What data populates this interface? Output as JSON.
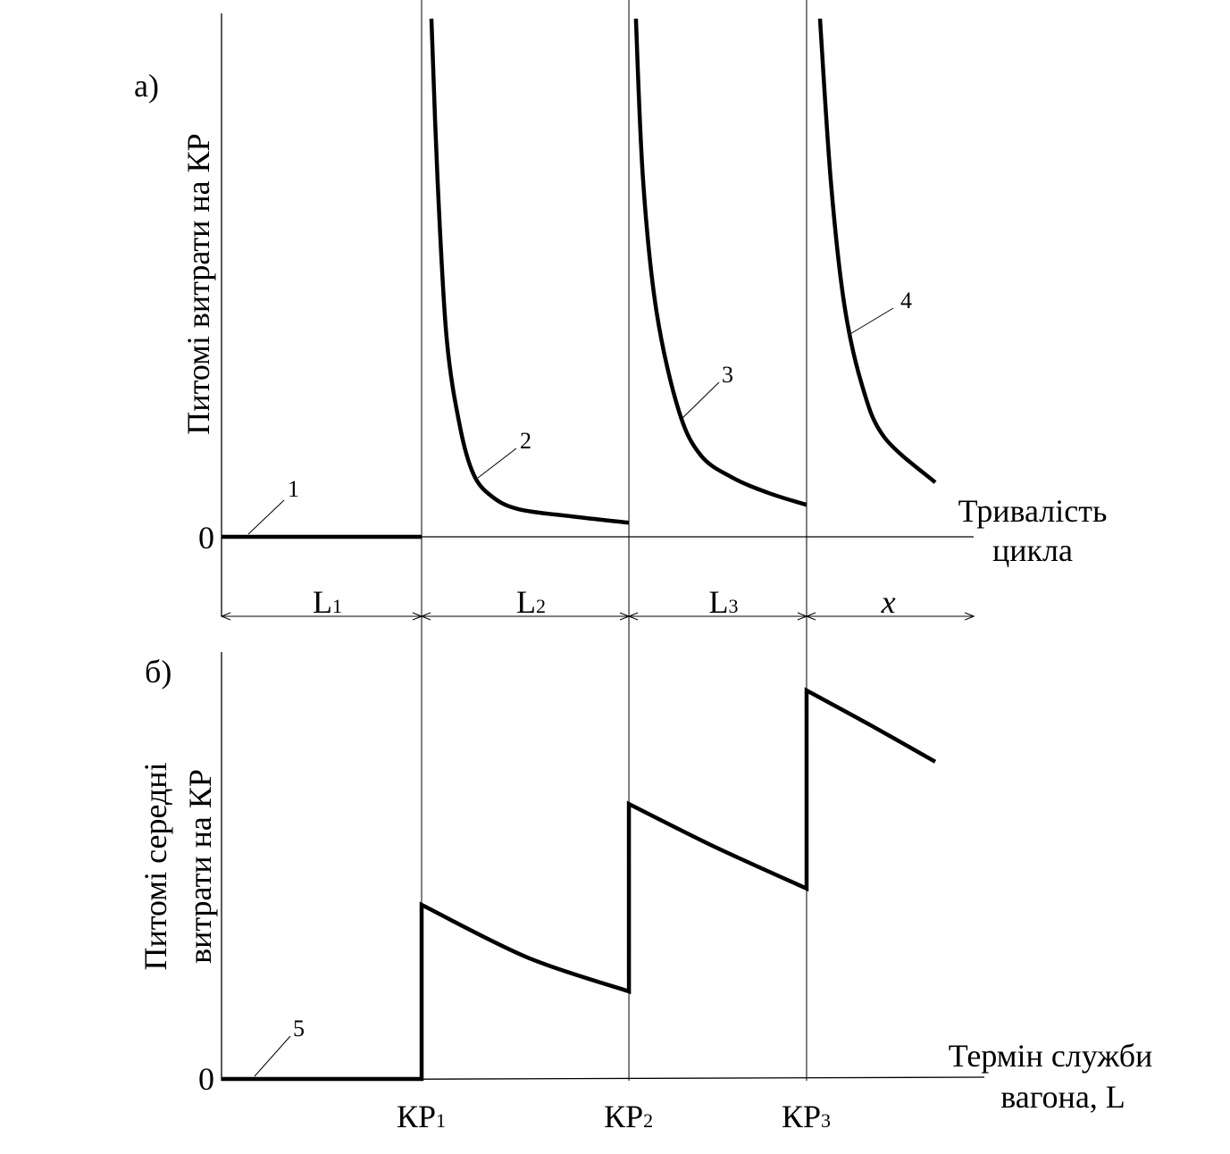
{
  "chart_data": [
    {
      "type": "line",
      "panel_label": "а)",
      "ylabel": "Питомі витрати на КР",
      "xlabel_line1": "Тривалість",
      "xlabel_line2": "цикла",
      "zero_label": "0",
      "ylim": [
        0,
        100
      ],
      "xlim": [
        0,
        3.76
      ],
      "intervals": [
        {
          "label": "L",
          "sub": "1",
          "italic": false
        },
        {
          "label": "L",
          "sub": "2",
          "italic": false
        },
        {
          "label": "L",
          "sub": "3",
          "italic": false
        },
        {
          "label": "x",
          "sub": "",
          "italic": true
        }
      ],
      "boundaries": [
        0,
        1,
        2.036,
        2.924,
        3.76
      ],
      "series": [
        {
          "name": "1",
          "x": [
            0,
            1
          ],
          "y": [
            0,
            0
          ]
        },
        {
          "name": "2",
          "x": [
            1.049,
            1.08,
            1.125,
            1.192,
            1.259,
            1.348,
            1.482,
            1.75,
            2.036
          ],
          "y": [
            99,
            68,
            38,
            21,
            12,
            7.8,
            5.3,
            3.9,
            2.7
          ]
        },
        {
          "name": "3",
          "x": [
            2.071,
            2.107,
            2.174,
            2.286,
            2.397,
            2.554,
            2.732,
            2.924
          ],
          "y": [
            99,
            68,
            43,
            24,
            15.5,
            11.3,
            8.4,
            6.1
          ]
        },
        {
          "name": "4",
          "x": [
            2.991,
            3.045,
            3.112,
            3.201,
            3.313,
            3.567
          ],
          "y": [
            99,
            68,
            44.5,
            29,
            19,
            10.4
          ]
        }
      ]
    },
    {
      "type": "line",
      "panel_label": "б)",
      "ylabel_line1": "Питомі середні",
      "ylabel_line2": "витрати на КР",
      "xlabel_line1": "Термін служби",
      "xlabel_line2": "вагона, L",
      "zero_label": "0",
      "ylim": [
        0,
        100
      ],
      "xlim": [
        0,
        3.8
      ],
      "x_ticks": [
        {
          "x": 1,
          "label": "КР",
          "sub": "1"
        },
        {
          "x": 2.036,
          "label": "КР",
          "sub": "2"
        },
        {
          "x": 2.924,
          "label": "КР",
          "sub": "3"
        }
      ],
      "series": [
        {
          "name": "5",
          "x": [
            0,
            1,
            1,
            1.527,
            2.036,
            2.036,
            2.464,
            2.924,
            2.924,
            3.246,
            3.567
          ],
          "y": [
            0,
            0,
            40.8,
            28.5,
            20.5,
            64.4,
            54.4,
            44.6,
            91,
            82.8,
            74.3
          ]
        }
      ]
    }
  ]
}
